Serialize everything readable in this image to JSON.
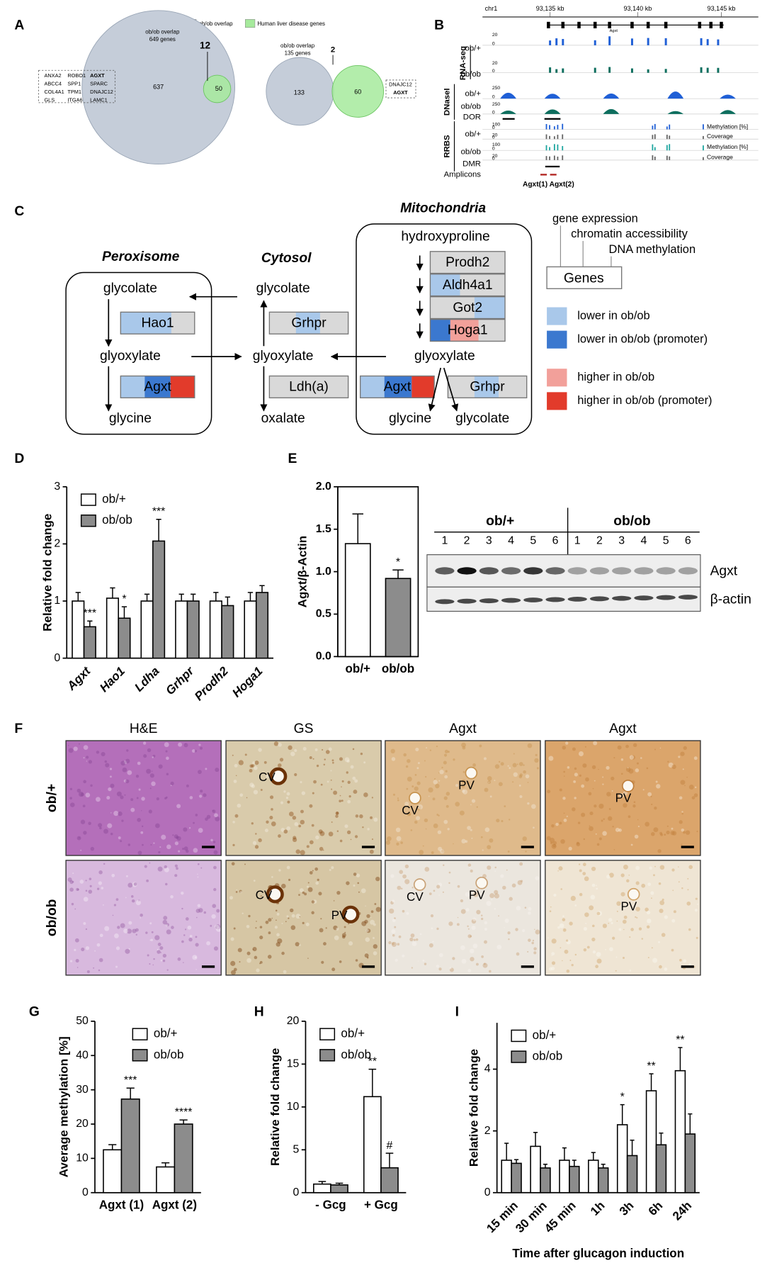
{
  "panel_labels": [
    "A",
    "B",
    "C",
    "D",
    "E",
    "F",
    "G",
    "H",
    "I"
  ],
  "panel_a": {
    "legend": [
      {
        "label": "ob/ob overlap",
        "color": "#c5cdd9"
      },
      {
        "label": "Human liver disease genes",
        "color": "#a6ea9c"
      }
    ],
    "venns": [
      {
        "title": [
          "ob/ob overlap",
          "649 genes"
        ],
        "only": 637,
        "overlap": 12,
        "disease_only": 50,
        "genes": [
          [
            "ANXA2",
            "ROBO1",
            {
              "text": "AGXT",
              "color": "#d9231d"
            }
          ],
          [
            "ABCC4",
            "SPP1",
            "SPARC"
          ],
          [
            "COL4A1",
            "TPM1",
            "DNAJC12"
          ],
          [
            "GLS",
            "ITGA6",
            "LAMC1"
          ]
        ]
      },
      {
        "title": [
          "ob/ob overlap",
          "135 genes"
        ],
        "only": 133,
        "overlap": 2,
        "disease_only": 60,
        "genes": [
          [
            "DNAJC12"
          ],
          [
            {
              "text": "AGXT",
              "color": "#d9231d"
            }
          ]
        ]
      }
    ]
  },
  "panel_b": {
    "chrom": "chr1",
    "coords": [
      "93,135 kb",
      "93,140 kb",
      "93,145 kb"
    ],
    "gene": "Agxt",
    "groups": [
      "RNA-seq",
      "DNaseI",
      "RRBS"
    ],
    "rows": [
      "ob/+",
      "ob/ob",
      "ob/+",
      "ob/ob",
      "DOR",
      "ob/+",
      "ob/ob",
      "DMR",
      "Amplicons"
    ],
    "scales": [
      [
        20,
        0
      ],
      [
        20,
        0
      ],
      [
        250,
        0
      ],
      [
        250,
        0
      ],
      [
        100,
        0
      ],
      [
        20,
        0
      ],
      [
        100,
        0
      ],
      [
        20,
        0
      ]
    ],
    "track_labels": [
      "Methylation [%]",
      "Coverage",
      "Methylation [%]",
      "Coverage"
    ],
    "amplicons": "Agxt(1) Agxt(2)"
  },
  "panel_c": {
    "compartments": [
      "Peroxisome",
      "Cytosol",
      "Mitochondria"
    ],
    "peroxisome": {
      "metabolites": [
        "glycolate",
        "glyoxylate",
        "glycine"
      ],
      "enzymes": [
        "Hao1",
        "Agxt"
      ]
    },
    "cytosol": {
      "metabolites": [
        "glycolate",
        "glyoxylate",
        "oxalate"
      ],
      "enzymes": [
        "Grhpr",
        "Ldh(a)"
      ]
    },
    "mitochondria": {
      "metabolites": [
        "hydroxyproline",
        "glyoxylate",
        "glycine",
        "glycolate"
      ],
      "enzymes": [
        "Prodh2",
        "Aldh4a1",
        "Got2",
        "Hoga1",
        "Agxt",
        "Grhpr"
      ]
    },
    "layers": [
      "gene expression",
      "chromatin accessibility",
      "DNA methylation"
    ],
    "genes_box": "Genes",
    "legend": [
      {
        "label": "lower in ob/ob",
        "color": "#a9c8ea"
      },
      {
        "label": "lower in ob/ob (promoter)",
        "color": "#3b78cf"
      },
      {
        "label": "higher in ob/ob",
        "color": "#f2a09a"
      },
      {
        "label": "higher in ob/ob (promoter)",
        "color": "#e23b2b"
      }
    ]
  },
  "panel_f": {
    "columns": [
      "H&E",
      "GS",
      "Agxt",
      "Agxt"
    ],
    "rows": [
      "ob/+",
      "ob/ob"
    ],
    "annotations": [
      [
        [],
        [
          "CV"
        ],
        [
          "CV",
          "PV"
        ],
        [
          "PV"
        ]
      ],
      [
        [],
        [
          "CV",
          "PV"
        ],
        [
          "CV",
          "PV"
        ],
        [
          "PV"
        ]
      ]
    ]
  },
  "chart_data": [
    {
      "type": "bar",
      "y_label": "Relative fold change",
      "ylim": [
        0,
        3
      ],
      "yticks": [
        0,
        1,
        2,
        3
      ],
      "categories": [
        "Agxt",
        "Hao1",
        "Ldha",
        "Grhpr",
        "Prodh2",
        "Hoga1"
      ],
      "legend": "upper left",
      "series": [
        {
          "name": "ob/+",
          "color": "#ffffff",
          "values": [
            1.0,
            1.05,
            1.0,
            1.0,
            1.0,
            1.0
          ],
          "errors": [
            0.15,
            0.18,
            0.12,
            0.12,
            0.15,
            0.15
          ],
          "significance": [
            null,
            null,
            null,
            null,
            null,
            null
          ]
        },
        {
          "name": "ob/ob",
          "color": "#8c8c8c",
          "values": [
            0.55,
            0.7,
            2.05,
            1.0,
            0.92,
            1.15
          ],
          "errors": [
            0.1,
            0.2,
            0.38,
            0.12,
            0.15,
            0.12
          ],
          "significance": [
            "***",
            "*",
            "***",
            null,
            null,
            null
          ]
        }
      ]
    },
    {
      "type": "bar",
      "y_label": "Agxt/β-Actin",
      "ylim": [
        0,
        2
      ],
      "yticks": [
        {
          "value": 0,
          "label": "0.0"
        },
        {
          "value": 0.5,
          "label": "0.5"
        },
        {
          "value": 1,
          "label": "1.0"
        },
        {
          "value": 1.5,
          "label": "1.5"
        },
        {
          "value": 2,
          "label": "2.0"
        }
      ],
      "categories": [
        "ob/+",
        "ob/ob"
      ],
      "values": [
        1.33,
        0.92
      ],
      "errors": [
        0.35,
        0.1
      ],
      "colors": [
        "#ffffff",
        "#8c8c8c"
      ],
      "significance": [
        null,
        "*"
      ],
      "blot": {
        "groups": [
          "ob/+",
          "ob/ob"
        ],
        "lanes": [
          1,
          2,
          3,
          4,
          5,
          6
        ],
        "bands": [
          "Agxt",
          "β-actin"
        ]
      }
    },
    {
      "type": "bar",
      "y_label": "Average methylation [%]",
      "ylim": [
        0,
        50
      ],
      "yticks": [
        0,
        10,
        20,
        30,
        40,
        50
      ],
      "categories": [
        "Agxt (1)",
        "Agxt (2)"
      ],
      "legend": "upper right",
      "series": [
        {
          "name": "ob/+",
          "color": "#ffffff",
          "values": [
            12.5,
            7.5
          ],
          "errors": [
            1.5,
            1.2
          ],
          "significance": [
            null,
            null
          ]
        },
        {
          "name": "ob/ob",
          "color": "#8c8c8c",
          "values": [
            27.3,
            20
          ],
          "errors": [
            3.2,
            1.2
          ],
          "significance": [
            "***",
            "****"
          ]
        }
      ]
    },
    {
      "type": "bar",
      "y_label": "Relative fold change",
      "ylim": [
        0,
        20
      ],
      "yticks": [
        0,
        5,
        10,
        15,
        20
      ],
      "categories": [
        "- Gcg",
        "+ Gcg"
      ],
      "legend": "upper left",
      "series": [
        {
          "name": "ob/+",
          "color": "#ffffff",
          "values": [
            1.0,
            11.2
          ],
          "errors": [
            0.3,
            3.2
          ],
          "significance": [
            null,
            "**"
          ]
        },
        {
          "name": "ob/ob",
          "color": "#8c8c8c",
          "values": [
            0.9,
            2.9
          ],
          "errors": [
            0.2,
            1.7
          ],
          "significance": [
            null,
            "#"
          ]
        }
      ]
    },
    {
      "type": "bar",
      "y_label": "Relative fold change",
      "x_label": "Time after glucagon induction",
      "ylim": [
        0,
        5.5
      ],
      "yticks": [
        0,
        2,
        4
      ],
      "categories": [
        "15 min",
        "30 min",
        "45 min",
        "1h",
        "3h",
        "6h",
        "24h"
      ],
      "legend": "upper left",
      "series": [
        {
          "name": "ob/+",
          "color": "#ffffff",
          "values": [
            1.05,
            1.5,
            1.05,
            1.05,
            2.2,
            3.3,
            3.95
          ],
          "errors": [
            0.55,
            0.45,
            0.4,
            0.25,
            0.65,
            0.55,
            0.75
          ],
          "significance": [
            null,
            null,
            null,
            null,
            "*",
            "**",
            "**"
          ]
        },
        {
          "name": "ob/ob",
          "color": "#8c8c8c",
          "values": [
            0.95,
            0.8,
            0.85,
            0.8,
            1.2,
            1.55,
            1.9
          ],
          "errors": [
            0.12,
            0.12,
            0.2,
            0.12,
            0.5,
            0.38,
            0.65
          ],
          "significance": [
            null,
            null,
            null,
            null,
            null,
            null,
            null
          ]
        }
      ]
    }
  ]
}
